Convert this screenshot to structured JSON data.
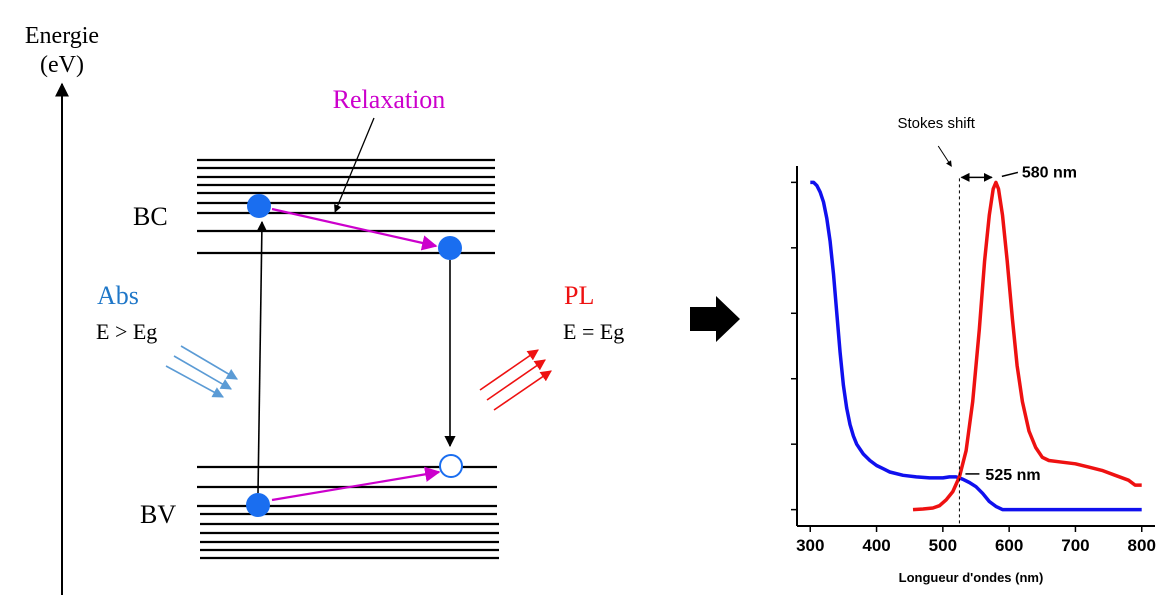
{
  "energy_diagram": {
    "axis_label_line1": "Energie",
    "axis_label_line2": "(eV)",
    "band_conduction": "BC",
    "band_valence": "BV",
    "relaxation_label": "Relaxation",
    "absorption_label": "Abs",
    "absorption_condition": "E > Eg",
    "emission_label": "PL",
    "emission_condition": "E = Eg"
  },
  "colors": {
    "electron": "#1a6ef0",
    "relaxation": "#cc00cc",
    "absorption_arrows": "#5b9bd5",
    "absorption_text": "#1f77c8",
    "emission": "#ee1111",
    "absorption_curve": "#1010ee",
    "emission_curve": "#ee1111"
  },
  "chart_data": {
    "type": "line",
    "xlabel": "Longueur d'ondes (nm)",
    "ylabel": "",
    "xlim": [
      280,
      820
    ],
    "ylim": [
      -0.05,
      1.05
    ],
    "xticks": [
      300,
      400,
      500,
      600,
      700,
      800
    ],
    "yticks": [
      0,
      0.2,
      0.4,
      0.6,
      0.8,
      1.0
    ],
    "grid": false,
    "series": [
      {
        "key": "absorption",
        "x": [
          300,
          305,
          310,
          315,
          320,
          325,
          330,
          335,
          340,
          345,
          350,
          355,
          360,
          365,
          370,
          375,
          380,
          390,
          400,
          410,
          420,
          440,
          460,
          480,
          500,
          510,
          520,
          530,
          540,
          550,
          560,
          570,
          580,
          590,
          600,
          650,
          700,
          750,
          800
        ],
        "values": [
          1.0,
          1.0,
          0.99,
          0.97,
          0.94,
          0.89,
          0.82,
          0.72,
          0.6,
          0.48,
          0.38,
          0.31,
          0.26,
          0.225,
          0.2,
          0.185,
          0.17,
          0.15,
          0.135,
          0.125,
          0.115,
          0.105,
          0.1,
          0.097,
          0.097,
          0.1,
          0.1,
          0.093,
          0.083,
          0.07,
          0.05,
          0.025,
          0.01,
          0.0,
          0.0,
          0.0,
          0.0,
          0.0,
          0.0
        ]
      },
      {
        "key": "emission",
        "x": [
          455,
          470,
          485,
          495,
          505,
          515,
          525,
          535,
          545,
          555,
          563,
          570,
          576,
          580,
          584,
          590,
          597,
          605,
          612,
          620,
          630,
          640,
          650,
          660,
          680,
          700,
          720,
          740,
          760,
          780,
          790,
          800
        ],
        "values": [
          0.0,
          0.002,
          0.005,
          0.012,
          0.03,
          0.055,
          0.1,
          0.18,
          0.33,
          0.55,
          0.76,
          0.9,
          0.98,
          1.0,
          0.98,
          0.9,
          0.76,
          0.58,
          0.44,
          0.33,
          0.24,
          0.19,
          0.16,
          0.15,
          0.145,
          0.14,
          0.13,
          0.12,
          0.105,
          0.09,
          0.075,
          0.075
        ]
      }
    ],
    "annotations": {
      "stokes_shift": "Stokes shift",
      "peak_label": "580 nm",
      "peak_x": 580,
      "onset_label": "525 nm",
      "onset_x": 525,
      "onset_y": 0.1
    }
  }
}
